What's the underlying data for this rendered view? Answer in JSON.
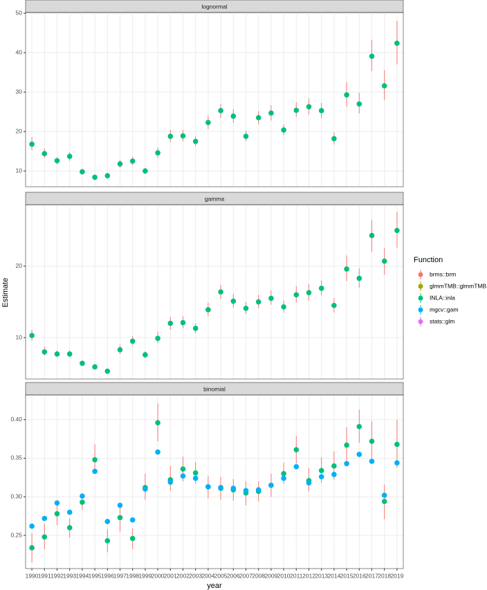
{
  "chart_data": {
    "type": "pointrange",
    "xlabel": "year",
    "ylabel": "Estimate",
    "categories": [
      "1990",
      "1991",
      "1992",
      "1993",
      "1994",
      "1995",
      "1996",
      "1997",
      "1998",
      "1999",
      "2000",
      "2001",
      "2002",
      "2003",
      "2004",
      "2005",
      "2006",
      "2007",
      "2008",
      "2009",
      "2010",
      "2011",
      "2012",
      "2013",
      "2014",
      "2015",
      "2016",
      "2017",
      "2018",
      "2019"
    ],
    "facets": [
      {
        "title": "lognormal",
        "ylim": [
          6,
          50.2
        ],
        "yticks": [
          10,
          20,
          30,
          40,
          50
        ]
      },
      {
        "title": "gamma",
        "ylim": [
          4.2,
          28.6
        ],
        "yticks": [
          10,
          20
        ]
      },
      {
        "title": "binomial",
        "ylim": [
          0.207,
          0.432
        ],
        "yticks": [
          0.25,
          {
            "value": 0.3,
            "label": "0.30"
          },
          0.35,
          {
            "value": 0.4,
            "label": "0.40"
          }
        ]
      }
    ],
    "legend_title": "Function",
    "grid": true,
    "series": [
      {
        "name": "brms::brm",
        "color": "#F8766D",
        "lower": [
          [
            15.3,
            13.3,
            11.7,
            12.6,
            9.1,
            7.9,
            8.2,
            10.8,
            11.5,
            9.3,
            13.3,
            17.3,
            17.5,
            16.3,
            20.6,
            23.5,
            22.2,
            17.5,
            21.8,
            22.8,
            19,
            23.7,
            24.3,
            23.4,
            16.7,
            26.3,
            24.6,
            35.3,
            28,
            37
          ],
          [
            9.6,
            7.5,
            7.3,
            7.3,
            6.1,
            5.6,
            5.0,
            7.7,
            8.9,
            7.1,
            9.2,
            11.1,
            11.3,
            10.6,
            13.0,
            15.4,
            14.2,
            13.3,
            14.1,
            14.6,
            13.5,
            14.9,
            15.2,
            15.9,
            13.5,
            17.9,
            17.0,
            22.0,
            18.8,
            22.6
          ],
          [
            0.215,
            0.232,
            0.263,
            0.247,
            0.283,
            0.332,
            0.228,
            0.255,
            0.232,
            0.296,
            0.372,
            0.308,
            0.32,
            0.317,
            0.298,
            0.296,
            0.295,
            0.289,
            0.294,
            0.3,
            0.317,
            0.343,
            0.307,
            0.318,
            0.322,
            0.345,
            0.37,
            0.35,
            0.271,
            0.338
          ]
        ],
        "upper": [
          [
            18.6,
            15.7,
            13.5,
            14.8,
            10.5,
            9.0,
            9.5,
            12.8,
            13.6,
            10.8,
            16,
            20.4,
            20.4,
            18.8,
            24,
            27,
            25.7,
            20.2,
            25.2,
            26.7,
            21.8,
            27.4,
            28.4,
            27.3,
            19.8,
            32.6,
            29.8,
            43.3,
            35.6,
            48.1
          ],
          [
            11.1,
            8.7,
            8.2,
            8.2,
            6.8,
            6.3,
            5.6,
            9.0,
            10.2,
            8.1,
            10.8,
            12.9,
            13.0,
            12.0,
            14.9,
            17.4,
            16.1,
            15.0,
            16.0,
            16.6,
            15.2,
            17.2,
            17.5,
            18.0,
            15.5,
            21.5,
            19.7,
            26.5,
            22.5,
            27.6
          ],
          [
            0.253,
            0.265,
            0.292,
            0.272,
            0.303,
            0.368,
            0.258,
            0.292,
            0.259,
            0.33,
            0.421,
            0.34,
            0.352,
            0.345,
            0.327,
            0.326,
            0.323,
            0.32,
            0.32,
            0.33,
            0.344,
            0.379,
            0.337,
            0.351,
            0.359,
            0.39,
            0.413,
            0.398,
            0.316,
            0.4
          ]
        ]
      },
      {
        "name": "glmmTMB::glmmTMB",
        "color": "#A3A500"
      },
      {
        "name": "INLA::inla",
        "color": "#00BF7D",
        "values": [
          [
            16.8,
            14.4,
            12.6,
            13.7,
            9.8,
            8.4,
            8.8,
            11.8,
            12.5,
            10,
            14.6,
            18.8,
            18.9,
            17.5,
            22.3,
            25.3,
            23.9,
            18.8,
            23.5,
            24.7,
            20.4,
            25.4,
            26.3,
            25.3,
            18.2,
            29.3,
            27,
            39.1,
            31.6,
            42.4
          ],
          [
            10.3,
            8.0,
            7.7,
            7.7,
            6.4,
            5.9,
            5.3,
            8.3,
            9.5,
            7.6,
            9.9,
            12.0,
            12.1,
            11.3,
            13.9,
            16.4,
            15.1,
            14.1,
            15.0,
            15.5,
            14.3,
            16.0,
            16.3,
            16.9,
            14.5,
            19.6,
            18.3,
            24.3,
            20.7,
            25.0
          ],
          [
            0.234,
            0.248,
            0.278,
            0.26,
            0.293,
            0.348,
            0.243,
            0.273,
            0.246,
            0.312,
            0.396,
            0.322,
            0.336,
            0.331,
            0.313,
            0.311,
            0.309,
            0.305,
            0.307,
            0.315,
            0.33,
            0.361,
            0.321,
            0.334,
            0.34,
            0.367,
            0.391,
            0.372,
            0.294,
            0.368
          ]
        ]
      },
      {
        "name": "mgcv::gam",
        "color": "#00B0F6",
        "values": [
          null,
          null,
          [
            0.262,
            0.272,
            0.292,
            0.28,
            0.301,
            0.333,
            0.268,
            0.289,
            0.27,
            0.31,
            0.358,
            0.319,
            0.327,
            0.324,
            0.313,
            0.312,
            0.311,
            0.308,
            0.309,
            0.315,
            0.324,
            0.339,
            0.318,
            0.326,
            0.329,
            0.343,
            0.355,
            0.346,
            0.302,
            0.344
          ]
        ]
      },
      {
        "name": "stats::glm",
        "color": "#E76BF3"
      }
    ]
  }
}
